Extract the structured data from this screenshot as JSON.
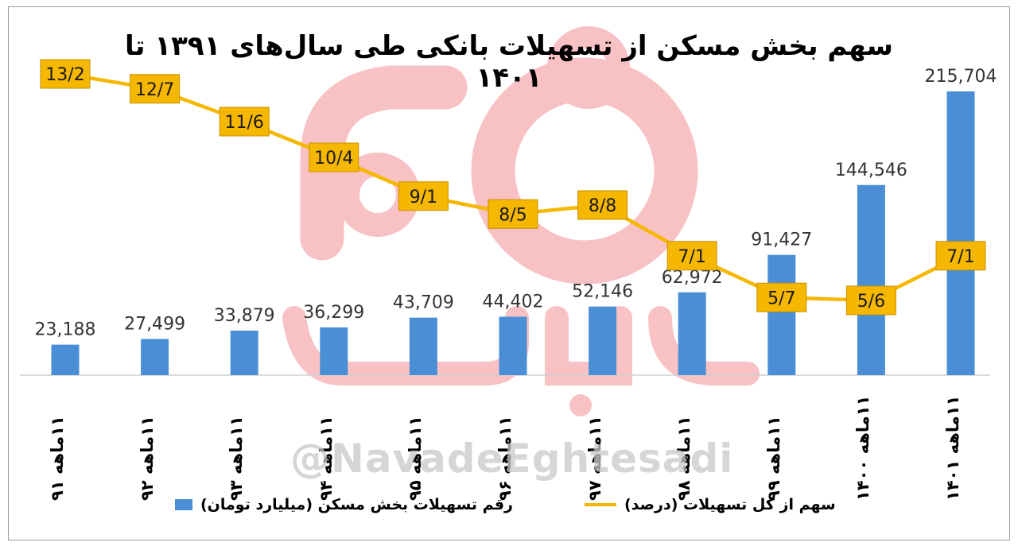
{
  "chart_data": {
    "type": "bar+line",
    "title": "سهم بخش مسکن از تسهیلات بانکی طی سال‌های ۱۳۹۱ تا ۱۴۰۱",
    "categories": [
      "۱۱ماهه ۹۱",
      "۱۱ماهه ۹۲",
      "۱۱ماهه ۹۳",
      "۱۱ماهه ۹۴",
      "۱۱ماهه ۹۵",
      "۱۱ماهه ۹۶",
      "۱۱ماهه ۹۷",
      "۱۱ماهه ۹۸",
      "۱۱ماهه ۹۹",
      "۱۱ماهه ۱۴۰۰",
      "۱۱ماهه ۱۴۰۱"
    ],
    "series": [
      {
        "name": "رقم تسهیلات بخش مسکن (میلیارد تومان)",
        "type": "bar",
        "color": "#4a8fd6",
        "values": [
          23188,
          27499,
          33879,
          36299,
          43709,
          44402,
          52146,
          62972,
          91427,
          144546,
          215704
        ],
        "labels": [
          "23,188",
          "27,499",
          "33,879",
          "36,299",
          "43,709",
          "44,402",
          "52,146",
          "62,972",
          "91,427",
          "144,546",
          "215,704"
        ]
      },
      {
        "name": "سهم از کل تسهیلات (درصد)",
        "type": "line",
        "color": "#f5b700",
        "values": [
          13.2,
          12.7,
          11.6,
          10.4,
          9.1,
          8.5,
          8.8,
          7.1,
          5.7,
          5.6,
          7.1
        ],
        "labels": [
          "13/2",
          "12/7",
          "11/6",
          "10/4",
          "9/1",
          "8/5",
          "8/8",
          "7/1",
          "5/7",
          "5/6",
          "7/1"
        ]
      }
    ],
    "legend_position": "bottom",
    "grid": false
  },
  "watermark": {
    "logo_text": "نوداقتصادی",
    "handle": "@NavadeEghtesadi"
  }
}
